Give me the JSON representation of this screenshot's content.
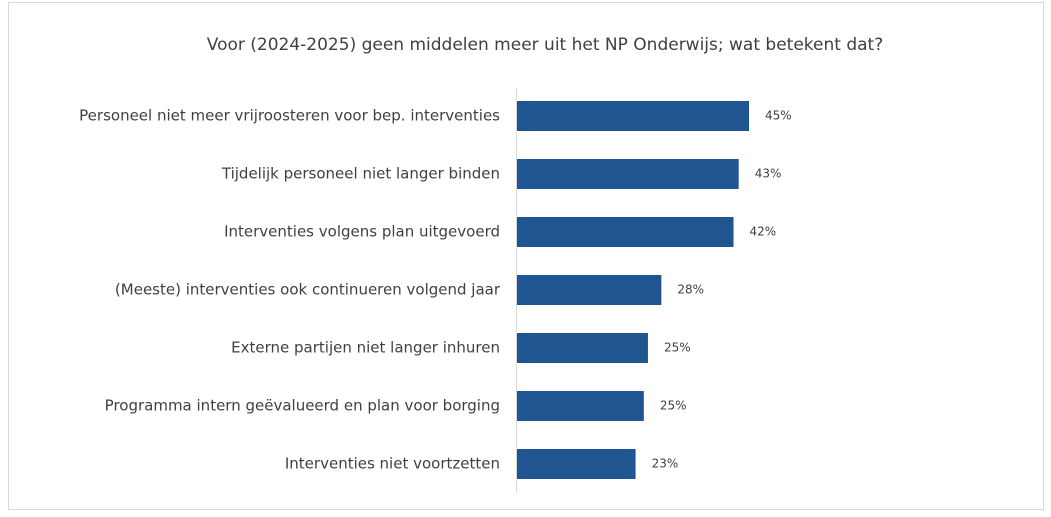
{
  "chart_data": {
    "type": "bar",
    "orientation": "horizontal",
    "title": "Voor (2024-2025) geen middelen meer uit het NP Onderwijs; wat betekent dat?",
    "categories": [
      "Personeel niet meer vrijroosteren voor bep. interventies",
      "Tijdelijk personeel niet langer binden",
      "Interventies volgens plan uitgevoerd",
      "(Meeste) interventies ook continueren volgend jaar",
      "Externe partijen niet langer inhuren",
      "Programma intern geëvalueerd en plan voor borging",
      "Interventies niet voortzetten"
    ],
    "values": [
      45,
      43,
      42,
      28,
      25.4,
      24.6,
      23
    ],
    "value_labels": [
      "45%",
      "43%",
      "42%",
      "28%",
      "25%",
      "25%",
      "23%"
    ],
    "color": "#1f5591",
    "xlim": [
      0,
      90
    ]
  }
}
